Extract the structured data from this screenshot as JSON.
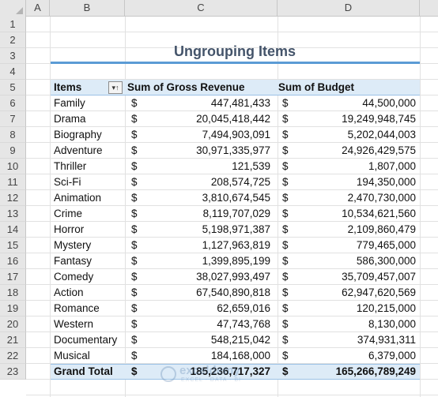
{
  "columns": [
    "A",
    "B",
    "C",
    "D"
  ],
  "rows": [
    "1",
    "2",
    "3",
    "4",
    "5",
    "6",
    "7",
    "8",
    "9",
    "10",
    "11",
    "12",
    "13",
    "14",
    "15",
    "16",
    "17",
    "18",
    "19",
    "20",
    "21",
    "22",
    "23"
  ],
  "title": "Ungrouping Items",
  "pivot": {
    "header": {
      "items": "Items",
      "revenue": "Sum of Gross Revenue",
      "budget": "Sum of Budget",
      "filter_icon": "filter-sort-icon"
    },
    "currency": "$",
    "items": [
      {
        "name": "Family",
        "revenue": "447,481,433",
        "budget": "44,500,000"
      },
      {
        "name": "Drama",
        "revenue": "20,045,418,442",
        "budget": "19,249,948,745"
      },
      {
        "name": "Biography",
        "revenue": "7,494,903,091",
        "budget": "5,202,044,003"
      },
      {
        "name": "Adventure",
        "revenue": "30,971,335,977",
        "budget": "24,926,429,575"
      },
      {
        "name": "Thriller",
        "revenue": "121,539",
        "budget": "1,807,000"
      },
      {
        "name": "Sci-Fi",
        "revenue": "208,574,725",
        "budget": "194,350,000"
      },
      {
        "name": "Animation",
        "revenue": "3,810,674,545",
        "budget": "2,470,730,000"
      },
      {
        "name": "Crime",
        "revenue": "8,119,707,029",
        "budget": "10,534,621,560"
      },
      {
        "name": "Horror",
        "revenue": "5,198,971,387",
        "budget": "2,109,860,479"
      },
      {
        "name": "Mystery",
        "revenue": "1,127,963,819",
        "budget": "779,465,000"
      },
      {
        "name": "Fantasy",
        "revenue": "1,399,895,199",
        "budget": "586,300,000"
      },
      {
        "name": "Comedy",
        "revenue": "38,027,993,497",
        "budget": "35,709,457,007"
      },
      {
        "name": "Action",
        "revenue": "67,540,890,818",
        "budget": "62,947,620,569"
      },
      {
        "name": "Romance",
        "revenue": "62,659,016",
        "budget": "120,215,000"
      },
      {
        "name": "Western",
        "revenue": "47,743,768",
        "budget": "8,130,000"
      },
      {
        "name": "Documentary",
        "revenue": "548,215,042",
        "budget": "374,931,311"
      },
      {
        "name": "Musical",
        "revenue": "184,168,000",
        "budget": "6,379,000"
      }
    ],
    "grand_total": {
      "label": "Grand Total",
      "revenue": "185,236,717,327",
      "budget": "165,266,789,249"
    }
  },
  "watermark": {
    "name": "exceldemy",
    "tagline": "EXCEL · DATA · BI"
  },
  "colors": {
    "title": "#44546a",
    "accent_rule": "#5b9bd5",
    "pivot_band": "#ddebf7"
  }
}
